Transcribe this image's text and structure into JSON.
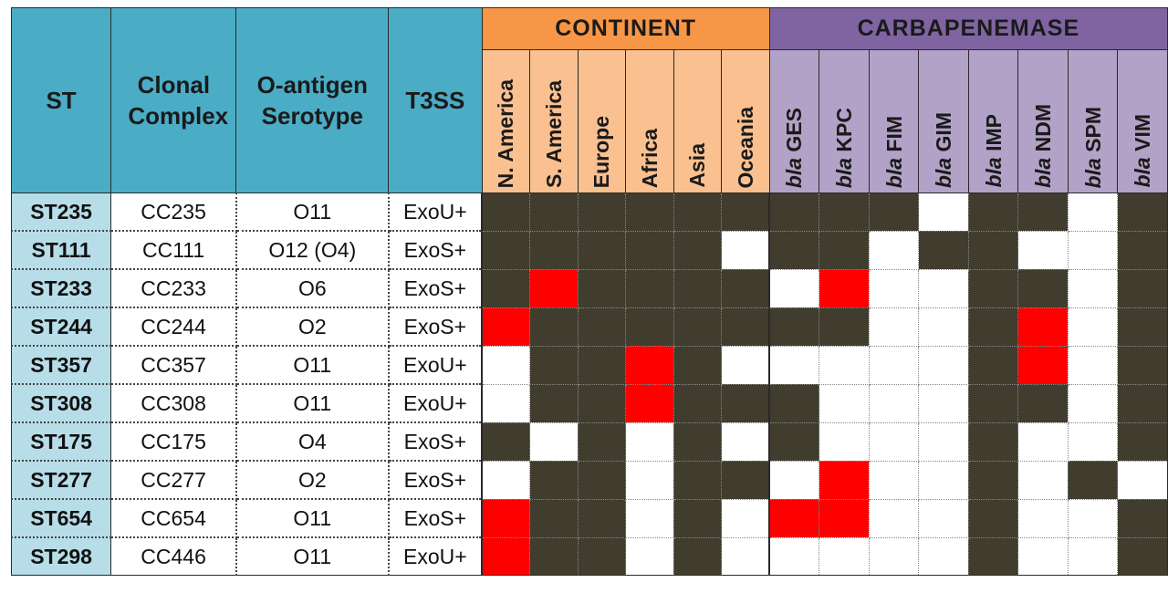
{
  "headers": {
    "st": "ST",
    "clonal_complex": "Clonal Complex",
    "serotype": "O-antigen Serotype",
    "t3ss": "T3SS",
    "continent_group": "CONTINENT",
    "carbapenemase_group": "CARBAPENEMASE"
  },
  "continents": [
    "N. America",
    "S. America",
    "Europe",
    "Africa",
    "Asia",
    "Oceania"
  ],
  "carbapenemases": [
    {
      "prefix": "bla",
      "name": "GES"
    },
    {
      "prefix": "bla",
      "name": "KPC"
    },
    {
      "prefix": "bla",
      "name": "FIM"
    },
    {
      "prefix": "bla",
      "name": "GIM"
    },
    {
      "prefix": "bla",
      "name": "IMP"
    },
    {
      "prefix": "bla",
      "name": "NDM"
    },
    {
      "prefix": "bla",
      "name": "SPM"
    },
    {
      "prefix": "bla",
      "name": "VIM"
    }
  ],
  "legend_states": {
    "0": "absent",
    "1": "present",
    "2": "highlighted"
  },
  "colors": {
    "header_blue": "#4bacc6",
    "st_column": "#b7dde8",
    "continent_header": "#f79646",
    "continent_sub": "#fac090",
    "carbapenemase_header": "#8064a2",
    "carbapenemase_sub": "#b3a2c7",
    "present": "#403c2e",
    "absent": "#ffffff",
    "highlight": "#ff0000"
  },
  "rows": [
    {
      "st": "ST235",
      "cc": "CC235",
      "serotype": "O11",
      "t3ss": "ExoU+",
      "continent": [
        1,
        1,
        1,
        1,
        1,
        1
      ],
      "carb": [
        1,
        1,
        1,
        0,
        1,
        1,
        0,
        1
      ]
    },
    {
      "st": "ST111",
      "cc": "CC111",
      "serotype": "O12 (O4)",
      "t3ss": "ExoS+",
      "continent": [
        1,
        1,
        1,
        1,
        1,
        0
      ],
      "carb": [
        1,
        1,
        0,
        1,
        1,
        0,
        0,
        1
      ]
    },
    {
      "st": "ST233",
      "cc": "CC233",
      "serotype": "O6",
      "t3ss": "ExoS+",
      "continent": [
        1,
        2,
        1,
        1,
        1,
        1
      ],
      "carb": [
        0,
        2,
        0,
        0,
        1,
        1,
        0,
        1
      ]
    },
    {
      "st": "ST244",
      "cc": "CC244",
      "serotype": "O2",
      "t3ss": "ExoS+",
      "continent": [
        2,
        1,
        1,
        1,
        1,
        1
      ],
      "carb": [
        1,
        1,
        0,
        0,
        1,
        2,
        0,
        1
      ]
    },
    {
      "st": "ST357",
      "cc": "CC357",
      "serotype": "O11",
      "t3ss": "ExoU+",
      "continent": [
        0,
        1,
        1,
        2,
        1,
        0
      ],
      "carb": [
        0,
        0,
        0,
        0,
        1,
        2,
        0,
        1
      ]
    },
    {
      "st": "ST308",
      "cc": "CC308",
      "serotype": "O11",
      "t3ss": "ExoU+",
      "continent": [
        0,
        1,
        1,
        2,
        1,
        1
      ],
      "carb": [
        1,
        0,
        0,
        0,
        1,
        1,
        0,
        1
      ]
    },
    {
      "st": "ST175",
      "cc": "CC175",
      "serotype": "O4",
      "t3ss": "ExoS+",
      "continent": [
        1,
        0,
        1,
        0,
        1,
        0
      ],
      "carb": [
        1,
        0,
        0,
        0,
        1,
        0,
        0,
        1
      ]
    },
    {
      "st": "ST277",
      "cc": "CC277",
      "serotype": "O2",
      "t3ss": "ExoS+",
      "continent": [
        0,
        1,
        1,
        0,
        1,
        1
      ],
      "carb": [
        0,
        2,
        0,
        0,
        1,
        0,
        1,
        0
      ]
    },
    {
      "st": "ST654",
      "cc": "CC654",
      "serotype": "O11",
      "t3ss": "ExoS+",
      "continent": [
        2,
        1,
        1,
        0,
        1,
        0
      ],
      "carb": [
        2,
        2,
        0,
        0,
        1,
        0,
        0,
        1
      ]
    },
    {
      "st": "ST298",
      "cc": "CC446",
      "serotype": "O11",
      "t3ss": "ExoU+",
      "continent": [
        2,
        1,
        1,
        0,
        1,
        0
      ],
      "carb": [
        0,
        0,
        0,
        0,
        1,
        0,
        0,
        1
      ]
    }
  ]
}
